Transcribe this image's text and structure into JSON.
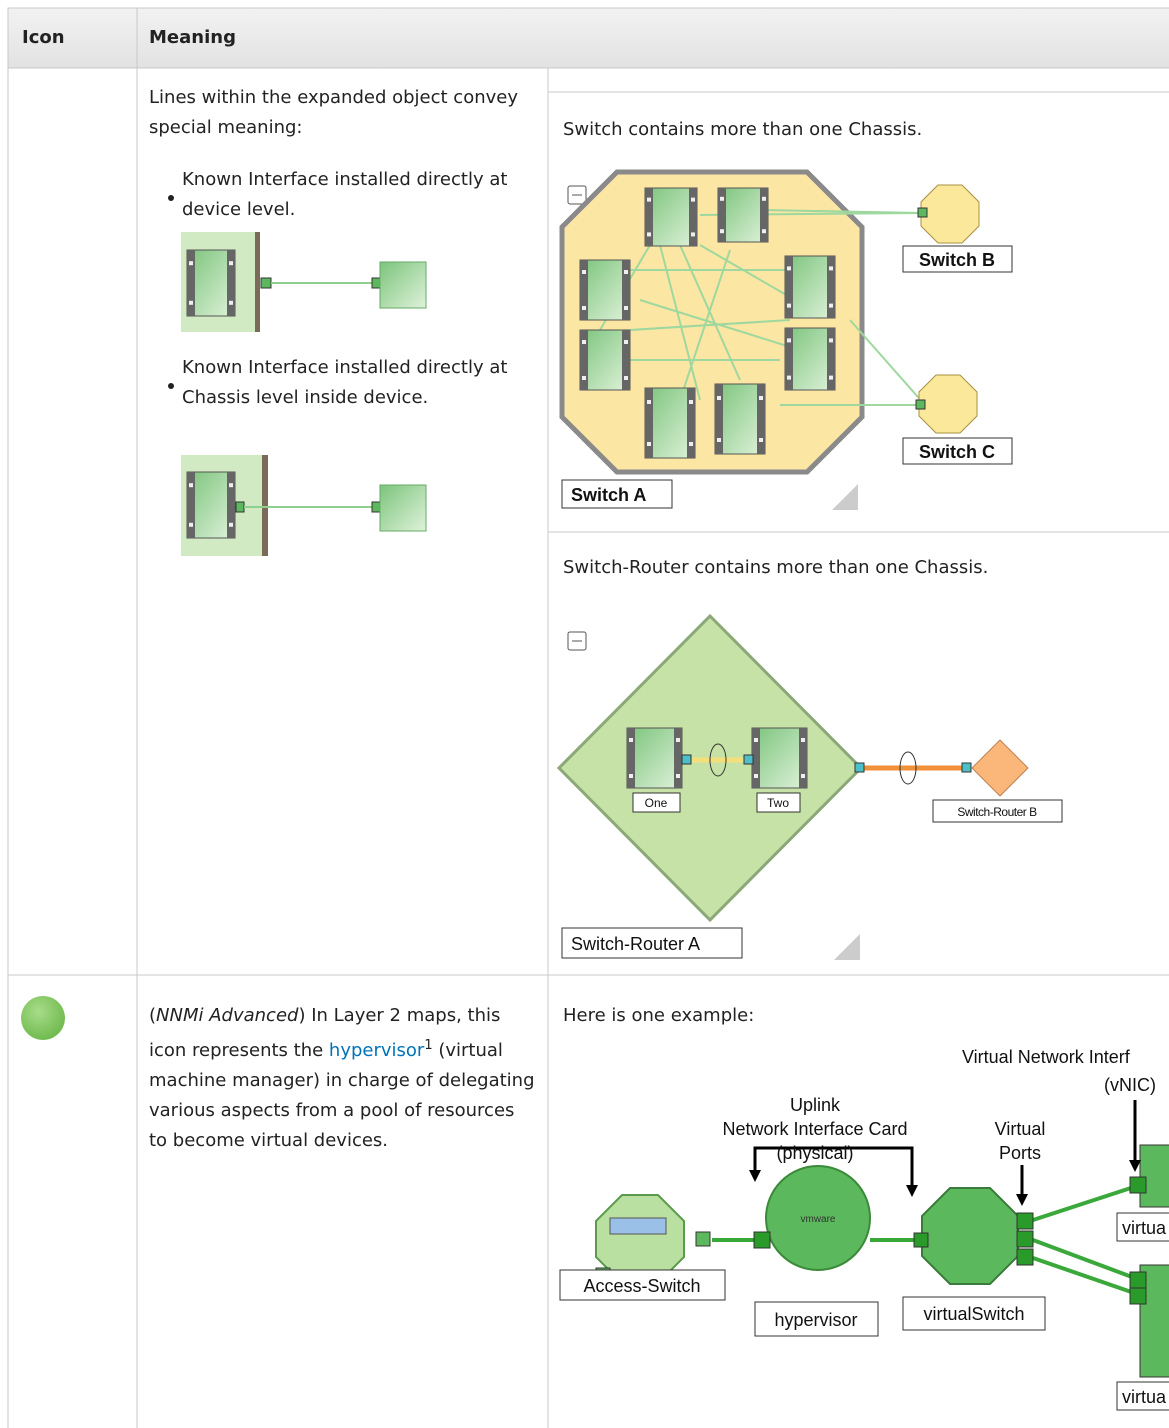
{
  "table": {
    "header": [
      "Icon",
      "Meaning"
    ],
    "rows": [
      {
        "meaning": {
          "intro": "Lines within the expanded object convey special meaning:",
          "bullets": [
            "Known Interface installed directly at device level.",
            "Known Interface installed directly at Chassis level inside device."
          ],
          "examples": [
            {
              "caption": "Switch contains more than one Chassis.",
              "labels": [
                "Switch B",
                "Switch C",
                "Switch A"
              ]
            },
            {
              "caption": "Switch-Router contains more than one Chassis.",
              "labels": [
                "One",
                "Two",
                "Switch-Router B",
                "Switch-Router A"
              ]
            }
          ]
        }
      },
      {
        "meaning": {
          "open": "(",
          "emphasis": "NNMi Advanced",
          "text1": ") In Layer 2 maps, this icon represents the",
          "link": "hypervisor",
          "footnote": "1",
          "text2": "(virtual machine manager) in charge of delegating various aspects from a pool of resources to become virtual devices.",
          "example": {
            "caption": "Here is one example:",
            "labels": [
              "Virtual Network Interf",
              "(vNIC)",
              "Uplink",
              "Network Interface Card",
              "(physical)",
              "Virtual",
              "Ports",
              "vmware",
              "Access-Switch",
              "hypervisor",
              "virtualSwitch",
              "virtua",
              "virtua"
            ]
          }
        }
      }
    ]
  }
}
